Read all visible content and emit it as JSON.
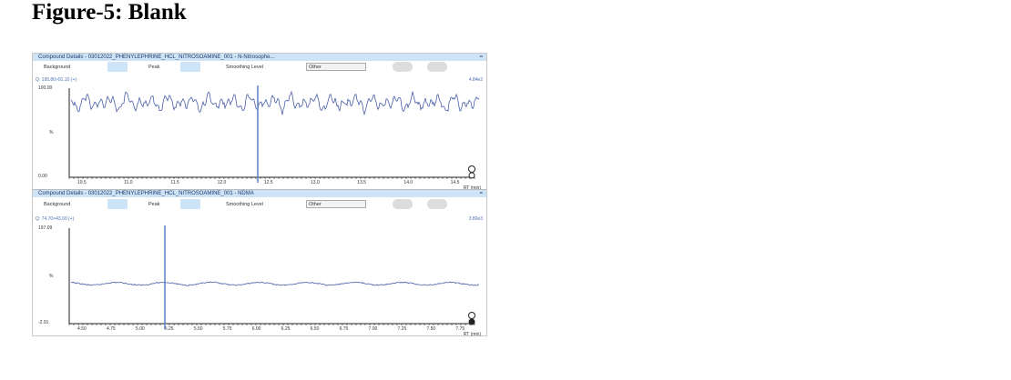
{
  "figure_title": "Figure-5: Blank",
  "panels": [
    {
      "header": "Compound Details - 03012022_PHENYLEPHRINE_HCL_NITROSOAMINE_001 - N-Nitrosophe...",
      "background_label": "Background",
      "peak_label": "Peak",
      "smoothing_label": "Smoothing Level",
      "smoothing_value": "Other",
      "transition": "Q: 195.80>91.10 (+)",
      "intensity": "4.84e2",
      "y_top": "100.00",
      "y_mid": "%",
      "y_bottom": "0.00",
      "x_ticks": [
        "10.5",
        "11.0",
        "11.5",
        "12.0",
        "12.5",
        "13.0",
        "13.5",
        "14.0",
        "14.5"
      ],
      "x_label": "RT (min)"
    },
    {
      "header": "Compound Details - 03012022_PHENYLEPHRINE_HCL_NITROSOAMINE_001 - NDMA",
      "background_label": "Background",
      "peak_label": "Peak",
      "smoothing_label": "Smoothing Level",
      "smoothing_value": "Other",
      "transition": "Q: 74.70>43.00 (+)",
      "intensity": "3.80e3",
      "y_top": "197.09",
      "y_mid": "%",
      "y_bottom": "-2.91",
      "x_ticks": [
        "4.50",
        "4.75",
        "5.00",
        "5.25",
        "5.50",
        "5.75",
        "6.00",
        "6.25",
        "6.50",
        "6.75",
        "7.00",
        "7.25",
        "7.50",
        "7.75"
      ],
      "x_label": "RT (min)"
    }
  ],
  "colors": {
    "header_bg": "#cfe3f7",
    "trace": "#4a5fa8",
    "marker": "#5b7fc4"
  }
}
